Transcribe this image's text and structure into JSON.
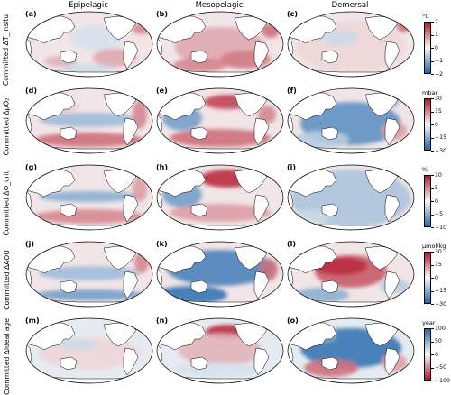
{
  "columns": [
    "Epipelagic",
    "Mesopelagic",
    "Demersal"
  ],
  "rows": [
    {
      "label": "Committed ΔT_insitu",
      "panels": [
        "(a)",
        "(b)",
        "(c)"
      ],
      "scheme": "rb",
      "unit": "°C",
      "ticks": [
        "2",
        "1",
        "0",
        "−1",
        "−2"
      ]
    },
    {
      "label": "Committed ΔpO₂",
      "panels": [
        "(d)",
        "(e)",
        "(f)"
      ],
      "scheme": "rb",
      "unit": "mbar",
      "ticks": [
        "30",
        "15",
        "0",
        "−15",
        "−30"
      ]
    },
    {
      "label": "Committed ΔΦ_crit",
      "panels": [
        "(g)",
        "(h)",
        "(i)"
      ],
      "scheme": "rb",
      "unit": "%",
      "ticks": [
        "10",
        "5",
        "0",
        "−5",
        "−10"
      ]
    },
    {
      "label": "Committed ΔAOU",
      "panels": [
        "(j)",
        "(k)",
        "(l)"
      ],
      "scheme": "rb",
      "unit": "µmol/kg",
      "ticks": [
        "30",
        "15",
        "0",
        "−15",
        "−30"
      ]
    },
    {
      "label": "Committed Δideal age",
      "panels": [
        "(m)",
        "(n)",
        "(o)"
      ],
      "scheme": "br",
      "unit": "year",
      "ticks": [
        "100",
        "50",
        "0",
        "−50",
        "−100"
      ]
    }
  ],
  "colors": {
    "red": "#b2182b",
    "blue": "#2166ac",
    "land": "#ffffff",
    "coast": "#000000"
  }
}
